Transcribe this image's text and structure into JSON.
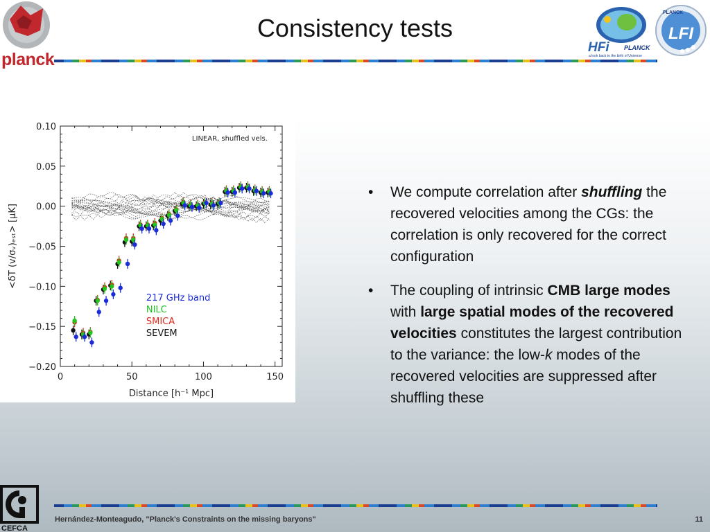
{
  "slide": {
    "title": "Consistency tests",
    "footer": "Hernández-Monteagudo, \"Planck's Constraints on the missing baryons\"",
    "page_number": "11"
  },
  "logos": {
    "planck_text": "planck",
    "hfi_text": "HFi",
    "hfi_planck": "PLANCK",
    "hfi_tagline": "a look back to the birth of Universe",
    "lfi_text": "LFI",
    "lfi_planck": "PLANCK",
    "cefca_text": "CEFCA"
  },
  "bullets": [
    {
      "parts": [
        {
          "text": "We compute correlation after ",
          "style": "normal"
        },
        {
          "text": "shuffling",
          "style": "bold-italic"
        },
        {
          "text": " the recovered velocities among the CGs: the correlation is only recovered for the correct configuration",
          "style": "normal"
        }
      ]
    },
    {
      "parts": [
        {
          "text": "The coupling of intrinsic ",
          "style": "normal"
        },
        {
          "text": "CMB large modes",
          "style": "bold"
        },
        {
          "text": " with ",
          "style": "normal"
        },
        {
          "text": "large spatial modes of the recovered velocities",
          "style": "bold"
        },
        {
          "text": " constitutes the largest contribution to the variance: the low-",
          "style": "normal"
        },
        {
          "text": "k",
          "style": "italic"
        },
        {
          "text": " modes of the recovered velocities are suppressed after shuffling these",
          "style": "normal"
        }
      ]
    }
  ],
  "chart_data": {
    "type": "scatter",
    "annotation": "LINEAR, shuffled vels.",
    "xlabel": "Distance [h⁻¹ Mpc]",
    "ylabel": "<δT (v/σᵥ)ₑₛₜ> [μK]",
    "xlim": [
      0,
      155
    ],
    "ylim": [
      -0.2,
      0.1
    ],
    "x_ticks": [
      0,
      50,
      100,
      150
    ],
    "x_tick_labels": [
      "0",
      "50",
      "100",
      "150"
    ],
    "y_ticks": [
      0.1,
      0.05,
      0.0,
      -0.05,
      -0.1,
      -0.15,
      -0.2
    ],
    "y_tick_labels": [
      "0.10",
      "0.05",
      "0.00",
      "−0.05",
      "−0.10",
      "−0.15",
      "−0.20"
    ],
    "legend": [
      "217 GHz band",
      "NILC",
      "SMICA",
      "SEVEM"
    ],
    "legend_placement": "bottom-center",
    "series": [
      {
        "name": "217 GHz band",
        "color": "#1a2bd8",
        "x": [
          11,
          17,
          22,
          27,
          32,
          37,
          42,
          47,
          52,
          57,
          62,
          67,
          72,
          77,
          82,
          87,
          92,
          97,
          102,
          107,
          112,
          117,
          122,
          127,
          132,
          137,
          142,
          147
        ],
        "y": [
          -0.163,
          -0.163,
          -0.17,
          -0.132,
          -0.118,
          -0.11,
          -0.102,
          -0.072,
          -0.048,
          -0.028,
          -0.028,
          -0.03,
          -0.022,
          -0.018,
          -0.012,
          0.001,
          -0.001,
          -0.002,
          0.004,
          0.001,
          0.004,
          0.017,
          0.017,
          0.022,
          0.022,
          0.019,
          0.016,
          0.016
        ]
      },
      {
        "name": "NILC",
        "color": "#22c41e",
        "x": [
          10,
          16,
          21,
          26,
          31,
          36,
          41,
          46,
          51,
          56,
          61,
          66,
          71,
          76,
          81,
          86,
          91,
          96,
          101,
          106,
          111,
          116,
          121,
          126,
          131,
          136,
          141,
          146
        ],
        "y": [
          -0.143,
          -0.16,
          -0.158,
          -0.118,
          -0.103,
          -0.1,
          -0.07,
          -0.042,
          -0.042,
          -0.024,
          -0.024,
          -0.023,
          -0.016,
          -0.011,
          -0.005,
          0.004,
          0.001,
          0.001,
          0.004,
          0.003,
          0.004,
          0.019,
          0.019,
          0.024,
          0.024,
          0.02,
          0.018,
          0.018
        ]
      },
      {
        "name": "SMICA",
        "color": "#e02a1c",
        "x": [
          10,
          16,
          21,
          26,
          31,
          36,
          41,
          46,
          51,
          56,
          61,
          66,
          71,
          76,
          81,
          86,
          91,
          96,
          101,
          106,
          111,
          116,
          121,
          126,
          131,
          136,
          141,
          146
        ],
        "y": [
          -0.145,
          -0.158,
          -0.157,
          -0.117,
          -0.101,
          -0.098,
          -0.068,
          -0.04,
          -0.04,
          -0.023,
          -0.023,
          -0.021,
          -0.015,
          -0.01,
          -0.004,
          0.005,
          0.002,
          0.002,
          0.005,
          0.004,
          0.005,
          0.02,
          0.02,
          0.025,
          0.025,
          0.021,
          0.019,
          0.019
        ]
      },
      {
        "name": "SEVEM",
        "color": "#111111",
        "x": [
          9,
          15,
          20,
          25,
          30,
          35,
          40,
          45,
          50,
          55,
          60,
          65,
          70,
          75,
          80,
          85,
          90,
          95,
          100,
          105,
          110,
          115,
          120,
          125,
          130,
          135,
          140,
          145
        ],
        "y": [
          -0.155,
          -0.16,
          -0.16,
          -0.118,
          -0.104,
          -0.099,
          -0.072,
          -0.045,
          -0.044,
          -0.025,
          -0.025,
          -0.024,
          -0.018,
          -0.012,
          -0.006,
          0.003,
          0.0,
          0.0,
          0.003,
          0.002,
          0.003,
          0.018,
          0.018,
          0.023,
          0.023,
          0.019,
          0.017,
          0.017
        ]
      }
    ],
    "shuffled_band": {
      "color": "#555555",
      "realizations": 20
    }
  }
}
